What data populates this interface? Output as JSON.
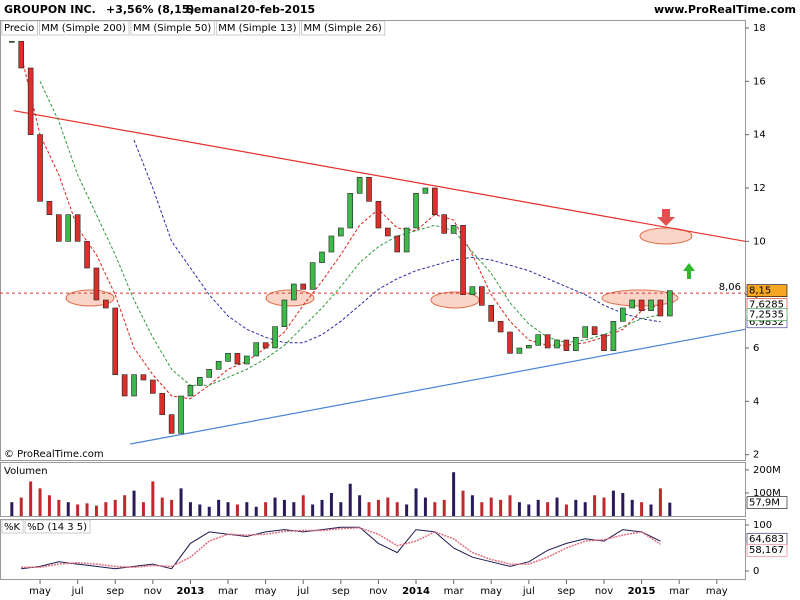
{
  "header": {
    "title": "GROUPON INC.",
    "change": "+3,56% (8,15)",
    "period": "Semanal",
    "date": "20-feb-2015",
    "site": "www.ProRealTime.com",
    "copyright": "© ProRealTime.com"
  },
  "chart_data": [
    {
      "type": "candlestick",
      "xlim": [
        1.87,
        41.5
      ],
      "xticks": [
        {
          "value": 4,
          "label": "may"
        },
        {
          "value": 6,
          "label": "jul"
        },
        {
          "value": 8,
          "label": "sep"
        },
        {
          "value": 10,
          "label": "nov"
        },
        {
          "value": 12,
          "label": "2013"
        },
        {
          "value": 14,
          "label": "mar"
        },
        {
          "value": 16,
          "label": "may"
        },
        {
          "value": 18,
          "label": "jul"
        },
        {
          "value": 20,
          "label": "sep"
        },
        {
          "value": 22,
          "label": "nov"
        },
        {
          "value": 24,
          "label": "2014"
        },
        {
          "value": 26,
          "label": "mar"
        },
        {
          "value": 28,
          "label": "may"
        },
        {
          "value": 30,
          "label": "jul"
        },
        {
          "value": 32,
          "label": "sep"
        },
        {
          "value": 34,
          "label": "nov"
        },
        {
          "value": 36,
          "label": "2015"
        },
        {
          "value": 38,
          "label": "mar"
        },
        {
          "value": 40,
          "label": "may"
        }
      ],
      "ylim": [
        1.8,
        18.3
      ],
      "yticks": [
        2,
        4,
        6,
        8,
        10,
        12,
        14,
        16,
        18
      ],
      "series": [
        {
          "name": "Precio",
          "type": "candlestick",
          "up_color": "#3db94a",
          "down_color": "#d9302b",
          "x": [
            2.5,
            3,
            3.5,
            4,
            4.5,
            5,
            5.5,
            6,
            6.5,
            7,
            7.5,
            8,
            8.5,
            9,
            9.5,
            10,
            10.5,
            11,
            11.5,
            12,
            12.5,
            13,
            13.5,
            14,
            14.5,
            15,
            15.5,
            16,
            16.5,
            17,
            17.5,
            18,
            18.5,
            19,
            19.5,
            20,
            20.5,
            21,
            21.5,
            22,
            22.5,
            23,
            23.5,
            24,
            24.5,
            25,
            25.5,
            26,
            26.5,
            27,
            27.5,
            28,
            28.5,
            29,
            29.5,
            30,
            30.5,
            31,
            31.5,
            32,
            32.5,
            33,
            33.5,
            34,
            34.5,
            35,
            35.5,
            36,
            36.5,
            37,
            37.5
          ],
          "values": [
            17.5,
            16.5,
            14,
            11.5,
            11,
            10,
            11,
            10,
            9,
            7.8,
            7.5,
            5,
            4.2,
            5,
            4.8,
            4.3,
            3.5,
            2.8,
            4.2,
            4.6,
            4.9,
            5.2,
            5.5,
            5.8,
            5.4,
            5.7,
            6.2,
            6,
            6.8,
            7.8,
            8.4,
            8.2,
            9.2,
            9.6,
            10.2,
            10.5,
            11.8,
            12.4,
            11.5,
            10.5,
            10.2,
            9.6,
            10.5,
            11.8,
            12,
            11,
            10.3,
            10.6,
            8,
            8.3,
            7.6,
            7,
            6.6,
            5.8,
            6,
            6.1,
            6.5,
            6,
            6.3,
            5.9,
            6.4,
            6.8,
            6.5,
            5.9,
            7,
            7.5,
            7.8,
            7.4,
            7.8,
            7.2,
            8.15
          ],
          "value_labels": [
            null,
            null,
            null,
            null,
            null,
            null,
            null,
            null,
            null,
            null,
            null,
            null,
            null,
            null,
            null,
            null,
            null,
            null,
            null,
            null,
            null,
            null,
            null,
            null,
            null,
            null,
            null,
            null,
            null,
            null,
            null,
            null,
            null,
            null,
            null,
            null,
            null,
            null,
            null,
            null,
            null,
            null,
            null,
            null,
            null,
            null,
            null,
            null,
            null,
            null,
            null,
            null,
            null,
            null,
            null,
            null,
            null,
            null,
            null,
            null,
            null,
            null,
            null,
            null,
            null,
            null,
            null,
            null,
            null,
            null,
            "8,15"
          ]
        },
        {
          "name": "MM (Simple 200)",
          "type": "line",
          "color": "#222222",
          "x": [],
          "values": []
        },
        {
          "name": "MM (Simple 50)",
          "type": "line",
          "color": "#2a2aa0",
          "x": [
            9,
            10,
            11,
            12,
            13,
            14,
            15,
            16,
            17,
            18,
            19,
            20,
            21,
            22,
            23,
            24,
            25,
            26,
            27,
            28,
            29,
            30,
            31,
            32,
            33,
            34,
            35,
            36,
            37
          ],
          "values": [
            13.8,
            12,
            10,
            9,
            8,
            7.2,
            6.7,
            6.4,
            6.2,
            6.2,
            6.5,
            7,
            7.6,
            8.2,
            8.6,
            8.9,
            9.1,
            9.3,
            9.4,
            9.3,
            9.1,
            8.9,
            8.6,
            8.3,
            8.0,
            7.6,
            7.3,
            7.1,
            6.9832
          ],
          "value_labels": [
            null,
            null,
            null,
            null,
            null,
            null,
            null,
            null,
            null,
            null,
            null,
            null,
            null,
            null,
            null,
            null,
            null,
            null,
            null,
            null,
            null,
            null,
            null,
            null,
            null,
            null,
            null,
            null,
            "6,9832"
          ]
        },
        {
          "name": "MM (Simple 13)",
          "type": "line",
          "color": "#e0201c",
          "x": [
            3,
            4,
            5,
            6,
            7,
            8,
            9,
            10,
            11,
            12,
            13,
            14,
            15,
            16,
            17,
            18,
            19,
            20,
            21,
            22,
            23,
            24,
            25,
            26,
            27,
            28,
            29,
            30,
            31,
            32,
            33,
            34,
            35,
            36,
            37
          ],
          "values": [
            17,
            14,
            12.5,
            10.5,
            9.5,
            8,
            6,
            5,
            4.2,
            4.1,
            4.6,
            5.2,
            5.5,
            6,
            6.6,
            7.6,
            8.5,
            9.5,
            10.6,
            11.2,
            10.5,
            10.4,
            11,
            10.8,
            9.5,
            8,
            7,
            6.3,
            6.1,
            6.1,
            6.2,
            6.4,
            6.7,
            7.4,
            7.6285
          ],
          "value_labels": [
            null,
            null,
            null,
            null,
            null,
            null,
            null,
            null,
            null,
            null,
            null,
            null,
            null,
            null,
            null,
            null,
            null,
            null,
            null,
            null,
            null,
            null,
            null,
            null,
            null,
            null,
            null,
            null,
            null,
            null,
            null,
            null,
            null,
            null,
            "7,6285"
          ]
        },
        {
          "name": "MM (Simple 26)",
          "type": "line",
          "color": "#2e9a3a",
          "x": [
            4,
            5,
            6,
            7,
            8,
            9,
            10,
            11,
            12,
            13,
            14,
            15,
            16,
            17,
            18,
            19,
            20,
            21,
            22,
            23,
            24,
            25,
            26,
            27,
            28,
            29,
            30,
            31,
            32,
            33,
            34,
            35,
            36,
            37
          ],
          "values": [
            16,
            14.5,
            12.5,
            11,
            9.5,
            7.8,
            6.4,
            5.2,
            4.6,
            4.6,
            4.9,
            5.2,
            5.6,
            6.1,
            6.8,
            7.5,
            8.3,
            9.2,
            9.8,
            10.2,
            10.4,
            10.6,
            10.4,
            9.6,
            8.8,
            7.7,
            6.9,
            6.4,
            6.2,
            6.3,
            6.5,
            6.8,
            7.1,
            7.2535
          ],
          "value_labels": [
            null,
            null,
            null,
            null,
            null,
            null,
            null,
            null,
            null,
            null,
            null,
            null,
            null,
            null,
            null,
            null,
            null,
            null,
            null,
            null,
            null,
            null,
            null,
            null,
            null,
            null,
            null,
            null,
            null,
            null,
            null,
            null,
            null,
            "7,2535"
          ]
        }
      ],
      "trendlines": [
        {
          "color": "#e8302a",
          "x": [
            2.6,
            41.5
          ],
          "y": [
            14.9,
            10
          ]
        },
        {
          "color": "#4a86d8",
          "x": [
            8.8,
            41.5
          ],
          "y": [
            2.4,
            6.7
          ]
        }
      ],
      "hline": {
        "value": 8.06,
        "label": "8,06",
        "color": "#d33"
      }
    },
    {
      "type": "bar",
      "title": "Volumen",
      "ylim": [
        0,
        230
      ],
      "yticks": [
        {
          "value": 100,
          "label": "100M"
        },
        {
          "value": 200,
          "label": "200M"
        }
      ],
      "up_color": "#2b1a5a",
      "down_color": "#c0282d",
      "x": [
        2.5,
        3,
        3.5,
        4,
        4.5,
        5,
        5.5,
        6,
        6.5,
        7,
        7.5,
        8,
        8.5,
        9,
        9.5,
        10,
        10.5,
        11,
        11.5,
        12,
        12.5,
        13,
        13.5,
        14,
        14.5,
        15,
        15.5,
        16,
        16.5,
        17,
        17.5,
        18,
        18.5,
        19,
        19.5,
        20,
        20.5,
        21,
        21.5,
        22,
        22.5,
        23,
        23.5,
        24,
        24.5,
        25,
        25.5,
        26,
        26.5,
        27,
        27.5,
        28,
        28.5,
        29,
        29.5,
        30,
        30.5,
        31,
        31.5,
        32,
        32.5,
        33,
        33.5,
        34,
        34.5,
        35,
        35.5,
        36,
        36.5,
        37,
        37.5
      ],
      "values": [
        60,
        80,
        150,
        120,
        90,
        70,
        60,
        50,
        55,
        45,
        60,
        70,
        90,
        110,
        60,
        150,
        80,
        70,
        120,
        60,
        50,
        40,
        70,
        60,
        50,
        60,
        40,
        60,
        80,
        70,
        60,
        90,
        50,
        70,
        100,
        60,
        140,
        90,
        60,
        70,
        80,
        60,
        50,
        120,
        80,
        60,
        70,
        190,
        110,
        90,
        60,
        80,
        70,
        90,
        60,
        50,
        70,
        60,
        80,
        50,
        70,
        60,
        90,
        80,
        110,
        100,
        70,
        60,
        50,
        120,
        57.9
      ],
      "value_labels": [
        null,
        null,
        null,
        null,
        null,
        null,
        null,
        null,
        null,
        null,
        null,
        null,
        null,
        null,
        null,
        null,
        null,
        null,
        null,
        null,
        null,
        null,
        null,
        null,
        null,
        null,
        null,
        null,
        null,
        null,
        null,
        null,
        null,
        null,
        null,
        null,
        null,
        null,
        null,
        null,
        null,
        null,
        null,
        null,
        null,
        null,
        null,
        null,
        null,
        null,
        null,
        null,
        null,
        null,
        null,
        null,
        null,
        null,
        null,
        null,
        null,
        null,
        null,
        null,
        null,
        null,
        null,
        null,
        null,
        null,
        "57,9M"
      ]
    },
    {
      "type": "line",
      "ylim": [
        -19.6,
        110.9
      ],
      "yticks": [
        0,
        100
      ],
      "series": [
        {
          "name": "%K",
          "color": "#1a1a50",
          "x": [
            3,
            4,
            5,
            6,
            7,
            8,
            9,
            10,
            11,
            12,
            13,
            14,
            15,
            16,
            17,
            18,
            19,
            20,
            21,
            22,
            23,
            24,
            25,
            26,
            27,
            28,
            29,
            30,
            31,
            32,
            33,
            34,
            35,
            36,
            37
          ],
          "values": [
            5,
            10,
            20,
            15,
            10,
            5,
            10,
            15,
            5,
            60,
            85,
            80,
            75,
            85,
            90,
            85,
            90,
            95,
            95,
            60,
            40,
            90,
            85,
            50,
            30,
            20,
            10,
            20,
            45,
            60,
            70,
            65,
            90,
            85,
            64.683
          ],
          "value_labels": [
            null,
            null,
            null,
            null,
            null,
            null,
            null,
            null,
            null,
            null,
            null,
            null,
            null,
            null,
            null,
            null,
            null,
            null,
            null,
            null,
            null,
            null,
            null,
            null,
            null,
            null,
            null,
            null,
            null,
            null,
            null,
            null,
            null,
            null,
            "64,683"
          ]
        },
        {
          "name": "%D (14 3 5)",
          "color": "#e07080",
          "x": [
            3,
            4,
            5,
            6,
            7,
            8,
            9,
            10,
            11,
            12,
            13,
            14,
            15,
            16,
            17,
            18,
            19,
            20,
            21,
            22,
            23,
            24,
            25,
            26,
            27,
            28,
            29,
            30,
            31,
            32,
            33,
            34,
            35,
            36,
            37
          ],
          "values": [
            8,
            8,
            15,
            18,
            15,
            10,
            8,
            12,
            10,
            30,
            65,
            80,
            78,
            80,
            86,
            88,
            88,
            92,
            94,
            80,
            55,
            65,
            85,
            70,
            40,
            25,
            15,
            15,
            30,
            50,
            65,
            68,
            78,
            85,
            58.167
          ],
          "value_labels": [
            null,
            null,
            null,
            null,
            null,
            null,
            null,
            null,
            null,
            null,
            null,
            null,
            null,
            null,
            null,
            null,
            null,
            null,
            null,
            null,
            null,
            null,
            null,
            null,
            null,
            null,
            null,
            null,
            null,
            null,
            null,
            null,
            null,
            null,
            "58,167"
          ]
        }
      ]
    }
  ]
}
